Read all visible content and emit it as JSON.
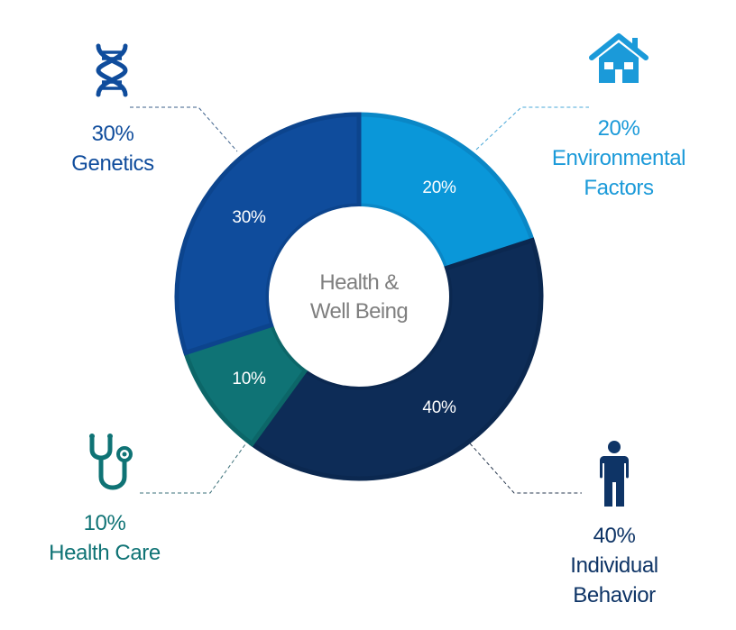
{
  "chart_data": {
    "type": "pie",
    "variant": "donut",
    "title": "",
    "center_label": [
      "Health &",
      "Well Being"
    ],
    "categories": [
      "Environmental Factors",
      "Individual Behavior",
      "Health Care",
      "Genetics"
    ],
    "values": [
      20,
      40,
      10,
      30
    ],
    "unit": "%",
    "start_angle_deg": 0,
    "direction": "clockwise",
    "colors": [
      "#0A97D9",
      "#0D2C57",
      "#0F7375",
      "#0F4C9C"
    ],
    "segment_labels": [
      "20%",
      "40%",
      "10%",
      "30%"
    ],
    "legend": "callouts"
  },
  "center": {
    "line1": "Health &",
    "line2": "Well Being"
  },
  "segments": [
    {
      "name": "Environmental Factors",
      "value": 20,
      "label": "20%",
      "color": "#0A97D9",
      "stroke": "#0A87C6"
    },
    {
      "name": "Individual Behavior",
      "value": 40,
      "label": "40%",
      "color": "#0D2C57",
      "stroke": "#0B2850"
    },
    {
      "name": "Health Care",
      "value": 10,
      "label": "10%",
      "color": "#0F7375",
      "stroke": "#0C6668"
    },
    {
      "name": "Genetics",
      "value": 30,
      "label": "30%",
      "color": "#0F4C9C",
      "stroke": "#0C448D"
    }
  ],
  "callouts": {
    "genetics": {
      "percent": "30%",
      "line1": "Genetics",
      "line2": "",
      "color": "#0F4C9C",
      "icon": "dna-icon"
    },
    "environmental": {
      "percent": "20%",
      "line1": "Environmental",
      "line2": "Factors",
      "color": "#1B9AD9",
      "icon": "house-icon"
    },
    "health_care": {
      "percent": "10%",
      "line1": "Health Care",
      "line2": "",
      "color": "#0F7375",
      "icon": "stethoscope-icon"
    },
    "individual": {
      "percent": "40%",
      "line1": "Individual",
      "line2": "Behavior",
      "color": "#0E3466",
      "icon": "person-icon"
    }
  }
}
